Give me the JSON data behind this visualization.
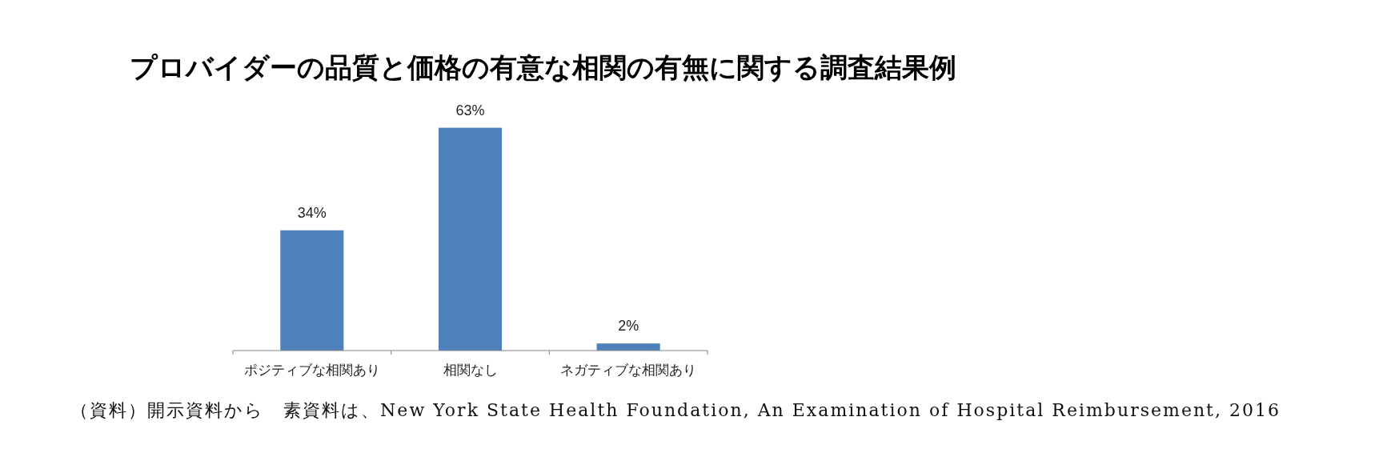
{
  "chart_data": {
    "type": "bar",
    "title": "プロバイダーの品質と価格の有意な相関の有無に関する調査結果例",
    "categories": [
      "ポジティブな相関あり",
      "相関なし",
      "ネガティブな相関あり"
    ],
    "values": [
      34,
      63,
      2
    ],
    "value_labels": [
      "34%",
      "63%",
      "2%"
    ],
    "color": "#4f81bd",
    "annotations": [
      "（資料）開示資料から　素資料は、New York State Health Foundation, An Examination of Hospital Reimbursement, 2016"
    ]
  }
}
